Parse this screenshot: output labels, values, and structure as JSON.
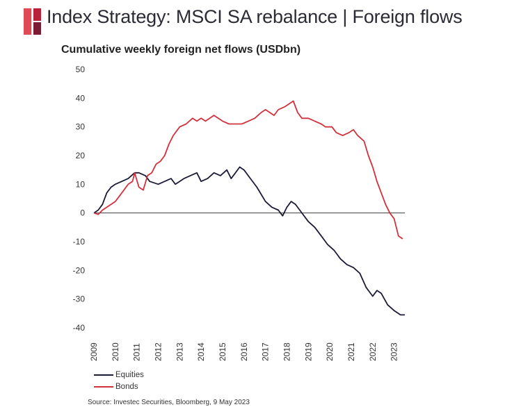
{
  "header": {
    "title": "Index Strategy: MSCI SA rebalance | Foreign flows",
    "logo_colors": [
      "#e04a57",
      "#b9203a",
      "#7a1a33"
    ]
  },
  "source": "Source: Investec Securities, Bloomberg, 9 May 2023",
  "chart_data": {
    "type": "line",
    "title": "Cumulative weekly foreign net flows (USDbn)",
    "xlabel": "",
    "ylabel": "",
    "ylim": [
      -40,
      50
    ],
    "xlim": [
      2009.0,
      2023.5
    ],
    "yticks": [
      "50",
      "40",
      "30",
      "20",
      "10",
      "0",
      "-10",
      "-20",
      "-30",
      "-40"
    ],
    "xticks": [
      "2009",
      "2010",
      "2011",
      "2012",
      "2013",
      "2014",
      "2015",
      "2016",
      "2017",
      "2018",
      "2019",
      "2020",
      "2021",
      "2022",
      "2023"
    ],
    "grid": false,
    "zero_line": true,
    "legend_position": "bottom-left",
    "series": [
      {
        "name": "Equities",
        "color": "#1b1a36",
        "points": [
          [
            2009.0,
            0
          ],
          [
            2009.2,
            1
          ],
          [
            2009.4,
            3
          ],
          [
            2009.6,
            7
          ],
          [
            2009.8,
            9
          ],
          [
            2010.0,
            10
          ],
          [
            2010.3,
            11
          ],
          [
            2010.6,
            12
          ],
          [
            2010.9,
            14
          ],
          [
            2011.1,
            14
          ],
          [
            2011.4,
            13
          ],
          [
            2011.6,
            11
          ],
          [
            2012.0,
            10
          ],
          [
            2012.3,
            11
          ],
          [
            2012.6,
            12
          ],
          [
            2012.8,
            10
          ],
          [
            2013.2,
            12
          ],
          [
            2013.5,
            13
          ],
          [
            2013.8,
            14
          ],
          [
            2014.0,
            11
          ],
          [
            2014.3,
            12
          ],
          [
            2014.6,
            14
          ],
          [
            2014.9,
            13
          ],
          [
            2015.2,
            15
          ],
          [
            2015.4,
            12
          ],
          [
            2015.6,
            14
          ],
          [
            2015.8,
            16
          ],
          [
            2016.0,
            15
          ],
          [
            2016.3,
            12
          ],
          [
            2016.6,
            9
          ],
          [
            2017.0,
            4
          ],
          [
            2017.3,
            2
          ],
          [
            2017.6,
            1
          ],
          [
            2017.8,
            -1
          ],
          [
            2018.0,
            2
          ],
          [
            2018.2,
            4
          ],
          [
            2018.4,
            3
          ],
          [
            2018.6,
            1
          ],
          [
            2018.8,
            -1
          ],
          [
            2019.0,
            -3
          ],
          [
            2019.3,
            -5
          ],
          [
            2019.6,
            -8
          ],
          [
            2019.9,
            -11
          ],
          [
            2020.2,
            -13
          ],
          [
            2020.5,
            -16
          ],
          [
            2020.8,
            -18
          ],
          [
            2021.1,
            -19
          ],
          [
            2021.4,
            -21
          ],
          [
            2021.7,
            -26
          ],
          [
            2022.0,
            -29
          ],
          [
            2022.2,
            -27
          ],
          [
            2022.4,
            -28
          ],
          [
            2022.7,
            -32
          ],
          [
            2023.0,
            -34
          ],
          [
            2023.3,
            -35.5
          ],
          [
            2023.5,
            -35.5
          ]
        ]
      },
      {
        "name": "Bonds",
        "color": "#d2313c",
        "points": [
          [
            2009.0,
            0
          ],
          [
            2009.2,
            -0.5
          ],
          [
            2009.4,
            1
          ],
          [
            2009.6,
            2
          ],
          [
            2009.8,
            3
          ],
          [
            2010.0,
            4
          ],
          [
            2010.2,
            6
          ],
          [
            2010.4,
            8
          ],
          [
            2010.6,
            10
          ],
          [
            2010.8,
            11
          ],
          [
            2010.9,
            14
          ],
          [
            2011.1,
            9
          ],
          [
            2011.3,
            8
          ],
          [
            2011.5,
            13
          ],
          [
            2011.7,
            14
          ],
          [
            2011.9,
            17
          ],
          [
            2012.1,
            18
          ],
          [
            2012.3,
            20
          ],
          [
            2012.5,
            24
          ],
          [
            2012.7,
            27
          ],
          [
            2013.0,
            30
          ],
          [
            2013.3,
            31
          ],
          [
            2013.6,
            33
          ],
          [
            2013.8,
            32
          ],
          [
            2014.0,
            33
          ],
          [
            2014.2,
            32
          ],
          [
            2014.4,
            33
          ],
          [
            2014.6,
            34
          ],
          [
            2014.8,
            33
          ],
          [
            2015.0,
            32
          ],
          [
            2015.3,
            31
          ],
          [
            2015.6,
            31
          ],
          [
            2015.9,
            31
          ],
          [
            2016.2,
            32
          ],
          [
            2016.5,
            33
          ],
          [
            2016.8,
            35
          ],
          [
            2017.0,
            36
          ],
          [
            2017.2,
            35
          ],
          [
            2017.4,
            34
          ],
          [
            2017.6,
            36
          ],
          [
            2017.9,
            37
          ],
          [
            2018.1,
            38
          ],
          [
            2018.3,
            39
          ],
          [
            2018.5,
            35
          ],
          [
            2018.7,
            33
          ],
          [
            2019.0,
            33
          ],
          [
            2019.3,
            32
          ],
          [
            2019.6,
            31
          ],
          [
            2019.8,
            30
          ],
          [
            2020.1,
            30
          ],
          [
            2020.3,
            28
          ],
          [
            2020.6,
            27
          ],
          [
            2020.9,
            28
          ],
          [
            2021.1,
            29
          ],
          [
            2021.3,
            27
          ],
          [
            2021.6,
            25
          ],
          [
            2021.8,
            20
          ],
          [
            2022.0,
            16
          ],
          [
            2022.2,
            11
          ],
          [
            2022.4,
            7
          ],
          [
            2022.6,
            3
          ],
          [
            2022.8,
            0
          ],
          [
            2023.0,
            -2
          ],
          [
            2023.2,
            -8
          ],
          [
            2023.4,
            -9
          ]
        ]
      }
    ]
  }
}
